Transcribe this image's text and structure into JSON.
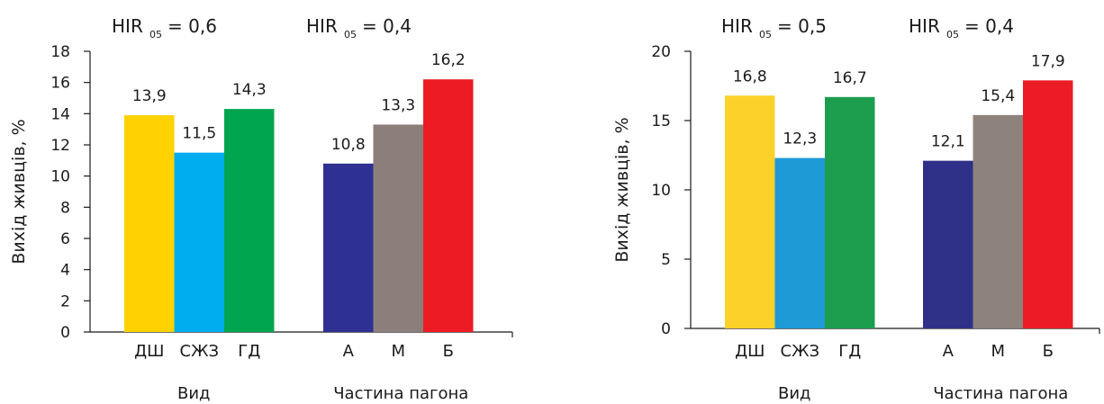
{
  "chart_data": [
    {
      "type": "bar",
      "ylabel": "Вихід живців, %",
      "ylim": [
        0,
        18
      ],
      "yticks": [
        0,
        2,
        4,
        6,
        8,
        10,
        12,
        14,
        16,
        18
      ],
      "groups": [
        {
          "label": "Вид",
          "hir_label": "HIR",
          "hir_sub": "05",
          "hir_value": "= 0,6",
          "bars": [
            {
              "category": "ДШ",
              "value": 13.9,
              "label": "13,9",
              "color": "#ffd200"
            },
            {
              "category": "СЖЗ",
              "value": 11.5,
              "label": "11,5",
              "color": "#00adef"
            },
            {
              "category": "ГД",
              "value": 14.3,
              "label": "14,3",
              "color": "#00a54f"
            }
          ]
        },
        {
          "label": "Частина пагона",
          "hir_label": "HIR",
          "hir_sub": "05",
          "hir_value": "= 0,4",
          "bars": [
            {
              "category": "А",
              "value": 10.8,
              "label": "10,8",
              "color": "#2e3192"
            },
            {
              "category": "М",
              "value": 13.3,
              "label": "13,3",
              "color": "#8c7f7b"
            },
            {
              "category": "Б",
              "value": 16.2,
              "label": "16,2",
              "color": "#ed1c24"
            }
          ]
        }
      ]
    },
    {
      "type": "bar",
      "ylabel": "Вихід живців, %",
      "ylim": [
        0,
        20
      ],
      "yticks": [
        0,
        5,
        10,
        15,
        20
      ],
      "groups": [
        {
          "label": "Вид",
          "hir_label": "HIR",
          "hir_sub": "05",
          "hir_value": "= 0,5",
          "bars": [
            {
              "category": "ДШ",
              "value": 16.8,
              "label": "16,8",
              "color": "#fcd22a"
            },
            {
              "category": "СЖЗ",
              "value": 12.3,
              "label": "12,3",
              "color": "#1e9ad6"
            },
            {
              "category": "ГД",
              "value": 16.7,
              "label": "16,7",
              "color": "#1c9e4e"
            }
          ]
        },
        {
          "label": "Частина пагона",
          "hir_label": "HIR",
          "hir_sub": "05",
          "hir_value": "= 0,4",
          "bars": [
            {
              "category": "А",
              "value": 12.1,
              "label": "12,1",
              "color": "#2e3187"
            },
            {
              "category": "М",
              "value": 15.4,
              "label": "15,4",
              "color": "#8e827d"
            },
            {
              "category": "Б",
              "value": 17.9,
              "label": "17,9",
              "color": "#ec1c27"
            }
          ]
        }
      ]
    }
  ]
}
